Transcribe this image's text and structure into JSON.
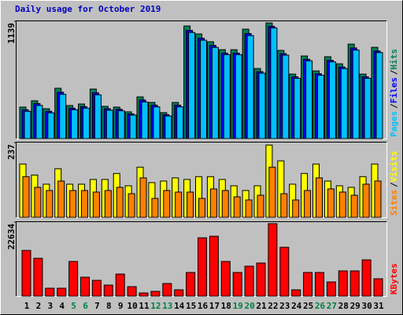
{
  "chart_data": [
    {
      "type": "bar",
      "title": "Daily usage for October 2019",
      "ylim": [
        0,
        1139
      ],
      "yticks": [
        1139
      ],
      "legend_separator": "/",
      "series": [
        {
          "name": "Hits",
          "color": "#00805c",
          "values": [
            306,
            367,
            290,
            489,
            321,
            336,
            481,
            313,
            306,
            260,
            405,
            351,
            252,
            351,
            1093,
            1016,
            940,
            863,
            863,
            1062,
            680,
            1123,
            856,
            626,
            802,
            657,
            795,
            726,
            917,
            626,
            886
          ]
        },
        {
          "name": "Files",
          "color": "#0000ff",
          "values": [
            280,
            340,
            265,
            450,
            295,
            310,
            445,
            290,
            285,
            240,
            375,
            325,
            232,
            325,
            1050,
            975,
            905,
            830,
            830,
            1020,
            650,
            1090,
            825,
            600,
            770,
            630,
            760,
            695,
            880,
            600,
            850
          ]
        },
        {
          "name": "Pages",
          "color": "#00c0ff",
          "values": [
            265,
            322,
            250,
            430,
            280,
            295,
            425,
            275,
            270,
            228,
            355,
            308,
            220,
            308,
            1030,
            955,
            885,
            815,
            815,
            1000,
            635,
            1075,
            810,
            585,
            755,
            615,
            745,
            680,
            860,
            585,
            835
          ]
        }
      ]
    },
    {
      "type": "bar",
      "ylim": [
        0,
        237
      ],
      "yticks": [
        237
      ],
      "legend_separator": "/",
      "series": [
        {
          "name": "Visits",
          "color": "#ffff00",
          "values": [
            169,
            134,
            105,
            154,
            105,
            105,
            120,
            120,
            139,
            100,
            159,
            110,
            115,
            125,
            120,
            129,
            129,
            120,
            100,
            85,
            100,
            229,
            179,
            105,
            139,
            169,
            115,
            100,
            95,
            129,
            169
          ]
        },
        {
          "name": "Sites",
          "color": "#ff8000",
          "values": [
            129,
            95,
            85,
            115,
            85,
            85,
            80,
            85,
            95,
            75,
            125,
            60,
            85,
            80,
            80,
            60,
            90,
            85,
            65,
            55,
            70,
            159,
            75,
            55,
            85,
            125,
            90,
            80,
            70,
            105,
            115
          ]
        }
      ]
    },
    {
      "type": "bar",
      "ylim": [
        0,
        22634
      ],
      "yticks": [
        22634
      ],
      "categories": [
        "1",
        "2",
        "3",
        "4",
        "5",
        "6",
        "7",
        "8",
        "9",
        "10",
        "11",
        "12",
        "13",
        "14",
        "15",
        "16",
        "17",
        "18",
        "19",
        "20",
        "21",
        "22",
        "23",
        "24",
        "25",
        "26",
        "27",
        "28",
        "29",
        "30",
        "31"
      ],
      "series": [
        {
          "name": "KBytes",
          "color": "#ff0000",
          "values": [
            13966,
            11558,
            2408,
            2408,
            10595,
            5779,
            4816,
            3371,
            6742,
            2890,
            963,
            1445,
            3853,
            1926,
            7224,
            17819,
            18301,
            10595,
            7224,
            9150,
            10114,
            22153,
            14930,
            1926,
            7224,
            7224,
            4334,
            7706,
            7706,
            11077,
            5298
          ]
        }
      ]
    }
  ]
}
